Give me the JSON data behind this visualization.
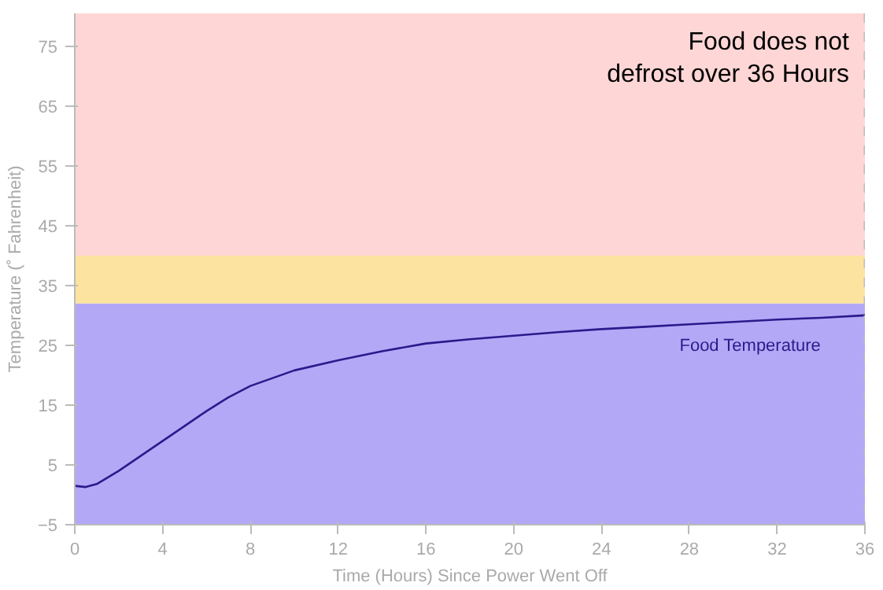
{
  "chart_data": {
    "type": "line",
    "xlabel": "Time (Hours) Since Power Went Off",
    "ylabel": "Temperature (˚ Fahrenheit)",
    "xlim": [
      0,
      36
    ],
    "ylim": [
      -5,
      80.5
    ],
    "xticks": [
      0,
      4,
      8,
      12,
      16,
      20,
      24,
      28,
      32,
      36
    ],
    "yticks": [
      -5,
      5,
      15,
      25,
      35,
      45,
      55,
      65,
      75
    ],
    "series": [
      {
        "name": "Food Temperature",
        "color": "#2a1a8c",
        "x": [
          0,
          0.5,
          1,
          2,
          3,
          4,
          5,
          6,
          7,
          8,
          10,
          12,
          14,
          16,
          18,
          20,
          22,
          24,
          26,
          28,
          30,
          32,
          34,
          36
        ],
        "values": [
          1.5,
          1.3,
          1.8,
          4,
          6.5,
          9,
          11.5,
          14,
          16.3,
          18.2,
          20.8,
          22.5,
          24,
          25.3,
          26,
          26.6,
          27.2,
          27.7,
          28.1,
          28.5,
          28.9,
          29.3,
          29.6,
          30
        ]
      }
    ],
    "bands": [
      {
        "axis": "y",
        "from": -5,
        "to": 32,
        "label": null,
        "color": "#b3a8f6"
      },
      {
        "axis": "y",
        "from": 32,
        "to": 40,
        "label": null,
        "color": "#fde3a0"
      },
      {
        "axis": "y",
        "from": 40,
        "to": 80.5,
        "label": null,
        "color": "#ffd6d6"
      }
    ],
    "ref_lines": [
      {
        "axis": "x",
        "value": 36,
        "label": null,
        "color": "#bbbbbb",
        "line_style": "dashed"
      }
    ],
    "annotations": [
      "Food does not\ndefrost over 36 Hours"
    ]
  }
}
